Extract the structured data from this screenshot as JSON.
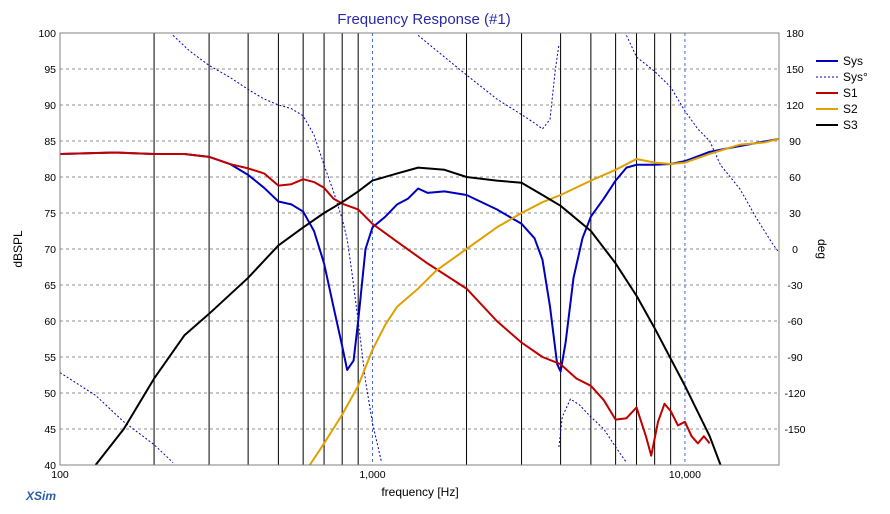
{
  "chart_data": {
    "type": "line",
    "title": "Frequency Response (#1)",
    "xlabel": "frequency [Hz]",
    "ylabel": "dBSPL",
    "y2label": "deg",
    "brand": "XSim",
    "x_scale": "log",
    "xlim": [
      100,
      20000
    ],
    "ylim": [
      40,
      100
    ],
    "y2lim": [
      -180,
      180
    ],
    "x_tick_labels": [
      {
        "value": 100,
        "label": "100"
      },
      {
        "value": 1000,
        "label": "1,000"
      },
      {
        "value": 10000,
        "label": "10,000"
      }
    ],
    "y_ticks": [
      40,
      45,
      50,
      55,
      60,
      65,
      70,
      75,
      80,
      85,
      90,
      95,
      100
    ],
    "y2_ticks": [
      -150,
      -120,
      -90,
      -60,
      -30,
      0,
      30,
      60,
      90,
      120,
      150,
      180
    ],
    "vertical_markers": [
      200,
      300,
      400,
      500,
      600,
      700,
      800,
      900,
      2000,
      3000,
      4000,
      5000,
      6000,
      7000,
      8000,
      9000
    ],
    "grid": true,
    "legend_position": "top-right",
    "series": [
      {
        "name": "Sys",
        "color": "#0000c0",
        "axis": "left",
        "style": "solid",
        "points": [
          [
            100,
            83.2
          ],
          [
            150,
            83.4
          ],
          [
            200,
            83.2
          ],
          [
            250,
            83.2
          ],
          [
            300,
            82.8
          ],
          [
            350,
            81.8
          ],
          [
            400,
            80.3
          ],
          [
            450,
            78.5
          ],
          [
            500,
            76.6
          ],
          [
            550,
            76.2
          ],
          [
            600,
            75.2
          ],
          [
            650,
            72.5
          ],
          [
            700,
            68
          ],
          [
            750,
            62
          ],
          [
            800,
            56.5
          ],
          [
            830,
            53.2
          ],
          [
            870,
            54.5
          ],
          [
            900,
            60
          ],
          [
            950,
            70
          ],
          [
            1000,
            73
          ],
          [
            1100,
            74.5
          ],
          [
            1200,
            76.2
          ],
          [
            1300,
            77
          ],
          [
            1400,
            78.4
          ],
          [
            1500,
            77.8
          ],
          [
            1700,
            78
          ],
          [
            2000,
            77.5
          ],
          [
            2500,
            75.5
          ],
          [
            3000,
            73.5
          ],
          [
            3300,
            71.5
          ],
          [
            3500,
            68.5
          ],
          [
            3700,
            62
          ],
          [
            3900,
            54
          ],
          [
            4000,
            53
          ],
          [
            4150,
            57
          ],
          [
            4400,
            66
          ],
          [
            4700,
            71.5
          ],
          [
            5000,
            74.5
          ],
          [
            5500,
            77
          ],
          [
            6000,
            79.5
          ],
          [
            6500,
            81.3
          ],
          [
            7000,
            81.7
          ],
          [
            8000,
            81.7
          ],
          [
            9000,
            81.8
          ],
          [
            10000,
            82.2
          ],
          [
            12000,
            83.5
          ],
          [
            15000,
            84.3
          ],
          [
            20000,
            85.3
          ]
        ]
      },
      {
        "name": "Sys°",
        "color": "#0000c0",
        "axis": "right",
        "style": "dashed",
        "segments": [
          [
            [
              100,
              -103
            ],
            [
              130,
              -122
            ],
            [
              160,
              -144
            ],
            [
              200,
              -163
            ],
            [
              230,
              -178
            ]
          ],
          [
            [
              230,
              178
            ],
            [
              260,
              165
            ],
            [
              300,
              153
            ],
            [
              350,
              143
            ],
            [
              400,
              133
            ],
            [
              450,
              125
            ],
            [
              500,
              120
            ],
            [
              550,
              117
            ],
            [
              600,
              111
            ],
            [
              650,
              95
            ],
            [
              700,
              70
            ],
            [
              750,
              48
            ],
            [
              800,
              25
            ],
            [
              830,
              8
            ],
            [
              860,
              -20
            ],
            [
              900,
              -60
            ],
            [
              950,
              -110
            ],
            [
              1000,
              -145
            ],
            [
              1070,
              -178
            ]
          ],
          [
            [
              1400,
              178
            ],
            [
              1700,
              160
            ],
            [
              2000,
              145
            ],
            [
              2500,
              125
            ],
            [
              3000,
              112
            ],
            [
              3300,
              105
            ],
            [
              3500,
              100
            ],
            [
              3700,
              108
            ],
            [
              3850,
              150
            ],
            [
              3950,
              170
            ]
          ],
          [
            [
              3950,
              -165
            ],
            [
              4050,
              -140
            ],
            [
              4300,
              -125
            ],
            [
              4600,
              -130
            ],
            [
              5000,
              -140
            ],
            [
              5500,
              -150
            ],
            [
              6000,
              -165
            ],
            [
              6500,
              -178
            ]
          ],
          [
            [
              6500,
              178
            ],
            [
              7000,
              160
            ],
            [
              8000,
              148
            ],
            [
              9000,
              135
            ],
            [
              10000,
              115
            ],
            [
              11000,
              100
            ],
            [
              12000,
              90
            ],
            [
              13000,
              70
            ],
            [
              15000,
              50
            ],
            [
              17000,
              25
            ],
            [
              19000,
              5
            ],
            [
              20000,
              -3
            ]
          ]
        ]
      },
      {
        "name": "S1",
        "color": "#c00000",
        "axis": "left",
        "style": "solid",
        "points": [
          [
            100,
            83.2
          ],
          [
            150,
            83.4
          ],
          [
            200,
            83.2
          ],
          [
            250,
            83.2
          ],
          [
            300,
            82.8
          ],
          [
            350,
            81.8
          ],
          [
            400,
            81.2
          ],
          [
            450,
            80.5
          ],
          [
            500,
            78.8
          ],
          [
            550,
            79
          ],
          [
            600,
            79.7
          ],
          [
            650,
            79.3
          ],
          [
            700,
            78.5
          ],
          [
            750,
            77
          ],
          [
            800,
            76.3
          ],
          [
            900,
            75.5
          ],
          [
            1000,
            73.5
          ],
          [
            1200,
            71
          ],
          [
            1500,
            68
          ],
          [
            2000,
            64.5
          ],
          [
            2500,
            60
          ],
          [
            3000,
            57
          ],
          [
            3500,
            55
          ],
          [
            4000,
            54
          ],
          [
            4500,
            52
          ],
          [
            5000,
            51
          ],
          [
            5500,
            49
          ],
          [
            6000,
            46.3
          ],
          [
            6500,
            46.5
          ],
          [
            7000,
            48
          ],
          [
            7500,
            44
          ],
          [
            7800,
            41.3
          ],
          [
            8200,
            46
          ],
          [
            8600,
            48.5
          ],
          [
            9000,
            47.5
          ],
          [
            9500,
            45.5
          ],
          [
            10000,
            46
          ],
          [
            10500,
            44
          ],
          [
            11000,
            43
          ],
          [
            11500,
            44
          ],
          [
            12000,
            43
          ]
        ]
      },
      {
        "name": "S2",
        "color": "#e0a000",
        "axis": "left",
        "style": "solid",
        "points": [
          [
            630,
            40
          ],
          [
            700,
            43
          ],
          [
            800,
            47
          ],
          [
            900,
            51
          ],
          [
            1000,
            56
          ],
          [
            1100,
            59.5
          ],
          [
            1200,
            62
          ],
          [
            1400,
            64.5
          ],
          [
            1600,
            67
          ],
          [
            2000,
            70
          ],
          [
            2500,
            73
          ],
          [
            3000,
            75
          ],
          [
            3500,
            76.5
          ],
          [
            4000,
            77.5
          ],
          [
            5000,
            79.5
          ],
          [
            6000,
            81
          ],
          [
            7000,
            82.5
          ],
          [
            8000,
            82
          ],
          [
            9000,
            81.8
          ],
          [
            10000,
            82
          ],
          [
            12000,
            83.2
          ],
          [
            15000,
            84.5
          ],
          [
            18000,
            84.8
          ],
          [
            20000,
            85.3
          ]
        ]
      },
      {
        "name": "S3",
        "color": "#000000",
        "axis": "left",
        "style": "solid",
        "points": [
          [
            130,
            40
          ],
          [
            160,
            45
          ],
          [
            200,
            52
          ],
          [
            250,
            58
          ],
          [
            300,
            61
          ],
          [
            400,
            66
          ],
          [
            500,
            70.5
          ],
          [
            600,
            73
          ],
          [
            700,
            75
          ],
          [
            800,
            76.5
          ],
          [
            900,
            78
          ],
          [
            1000,
            79.5
          ],
          [
            1200,
            80.5
          ],
          [
            1400,
            81.3
          ],
          [
            1700,
            81
          ],
          [
            2000,
            80
          ],
          [
            2500,
            79.5
          ],
          [
            3000,
            79.2
          ],
          [
            3500,
            77.5
          ],
          [
            4000,
            76
          ],
          [
            5000,
            72.5
          ],
          [
            6000,
            68
          ],
          [
            7000,
            63.5
          ],
          [
            8000,
            59
          ],
          [
            10000,
            51
          ],
          [
            12000,
            44
          ],
          [
            13000,
            40
          ]
        ]
      }
    ]
  }
}
